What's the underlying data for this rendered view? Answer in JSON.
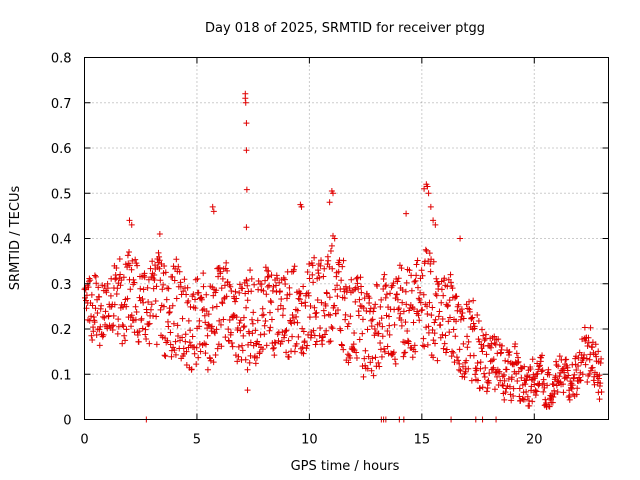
{
  "chart_data": {
    "type": "scatter",
    "title": "Day 018 of 2025, SRMTID for receiver ptgg",
    "xlabel": "GPS time / hours",
    "ylabel": "SRMTID / TECUs",
    "xlim": [
      0,
      23.3
    ],
    "ylim": [
      0,
      0.8
    ],
    "x_ticks": [
      0,
      5,
      10,
      15,
      20
    ],
    "y_ticks": [
      0,
      0.1,
      0.2,
      0.3,
      0.4,
      0.5,
      0.6,
      0.7,
      0.8
    ],
    "x_tick_labels": [
      "0",
      "5",
      "10",
      "15",
      "20"
    ],
    "y_tick_labels": [
      "0",
      "0.1",
      "0.2",
      "0.3",
      "0.4",
      "0.5",
      "0.6",
      "0.7",
      "0.8"
    ],
    "grid": true,
    "marker": "+",
    "color": "#e00000",
    "envelope": {
      "hours": [
        0,
        0.5,
        1,
        1.5,
        2,
        2.5,
        3,
        3.5,
        4,
        4.5,
        5,
        5.5,
        6,
        6.5,
        7,
        7.5,
        8,
        8.5,
        9,
        9.5,
        10,
        10.5,
        11,
        11.5,
        12,
        12.5,
        13,
        13.5,
        14,
        14.5,
        15,
        15.5,
        16,
        16.5,
        17,
        17.5,
        18,
        18.5,
        19,
        19.5,
        20,
        20.5,
        21,
        21.5,
        22,
        22.5,
        23
      ],
      "low": [
        0.19,
        0.18,
        0.19,
        0.18,
        0.19,
        0.18,
        0.19,
        0.16,
        0.15,
        0.13,
        0.13,
        0.13,
        0.15,
        0.16,
        0.14,
        0.13,
        0.16,
        0.15,
        0.14,
        0.15,
        0.16,
        0.18,
        0.19,
        0.16,
        0.13,
        0.11,
        0.12,
        0.14,
        0.14,
        0.14,
        0.15,
        0.15,
        0.15,
        0.12,
        0.1,
        0.09,
        0.08,
        0.07,
        0.05,
        0.05,
        0.05,
        0.04,
        0.05,
        0.06,
        0.08,
        0.1,
        0.07
      ],
      "high": [
        0.3,
        0.3,
        0.32,
        0.33,
        0.36,
        0.31,
        0.34,
        0.35,
        0.34,
        0.3,
        0.3,
        0.29,
        0.34,
        0.3,
        0.3,
        0.3,
        0.33,
        0.3,
        0.33,
        0.3,
        0.35,
        0.35,
        0.38,
        0.34,
        0.29,
        0.28,
        0.27,
        0.3,
        0.32,
        0.32,
        0.35,
        0.36,
        0.32,
        0.28,
        0.25,
        0.22,
        0.19,
        0.17,
        0.14,
        0.13,
        0.12,
        0.11,
        0.11,
        0.11,
        0.16,
        0.2,
        0.14
      ]
    },
    "spikes": [
      {
        "x": 2.0,
        "y": 0.44
      },
      {
        "x": 2.1,
        "y": 0.43
      },
      {
        "x": 3.35,
        "y": 0.41
      },
      {
        "x": 5.7,
        "y": 0.47
      },
      {
        "x": 5.75,
        "y": 0.46
      },
      {
        "x": 7.15,
        "y": 0.72
      },
      {
        "x": 7.15,
        "y": 0.71
      },
      {
        "x": 7.17,
        "y": 0.7
      },
      {
        "x": 7.2,
        "y": 0.655
      },
      {
        "x": 7.2,
        "y": 0.595
      },
      {
        "x": 7.22,
        "y": 0.508
      },
      {
        "x": 7.2,
        "y": 0.425
      },
      {
        "x": 7.25,
        "y": 0.11
      },
      {
        "x": 7.25,
        "y": 0.065
      },
      {
        "x": 9.6,
        "y": 0.475
      },
      {
        "x": 9.65,
        "y": 0.47
      },
      {
        "x": 10.9,
        "y": 0.48
      },
      {
        "x": 11.0,
        "y": 0.505
      },
      {
        "x": 11.05,
        "y": 0.5
      },
      {
        "x": 14.3,
        "y": 0.455
      },
      {
        "x": 15.1,
        "y": 0.51
      },
      {
        "x": 15.2,
        "y": 0.52
      },
      {
        "x": 15.25,
        "y": 0.515
      },
      {
        "x": 15.3,
        "y": 0.5
      },
      {
        "x": 15.4,
        "y": 0.47
      },
      {
        "x": 15.5,
        "y": 0.44
      },
      {
        "x": 15.6,
        "y": 0.43
      },
      {
        "x": 16.7,
        "y": 0.4
      },
      {
        "x": 22.85,
        "y": 0.06
      },
      {
        "x": 22.9,
        "y": 0.045
      }
    ],
    "zero_points": [
      2.75,
      13.2,
      13.3,
      13.4,
      14.0,
      14.2,
      16.3,
      17.4,
      17.7,
      18.3
    ]
  }
}
